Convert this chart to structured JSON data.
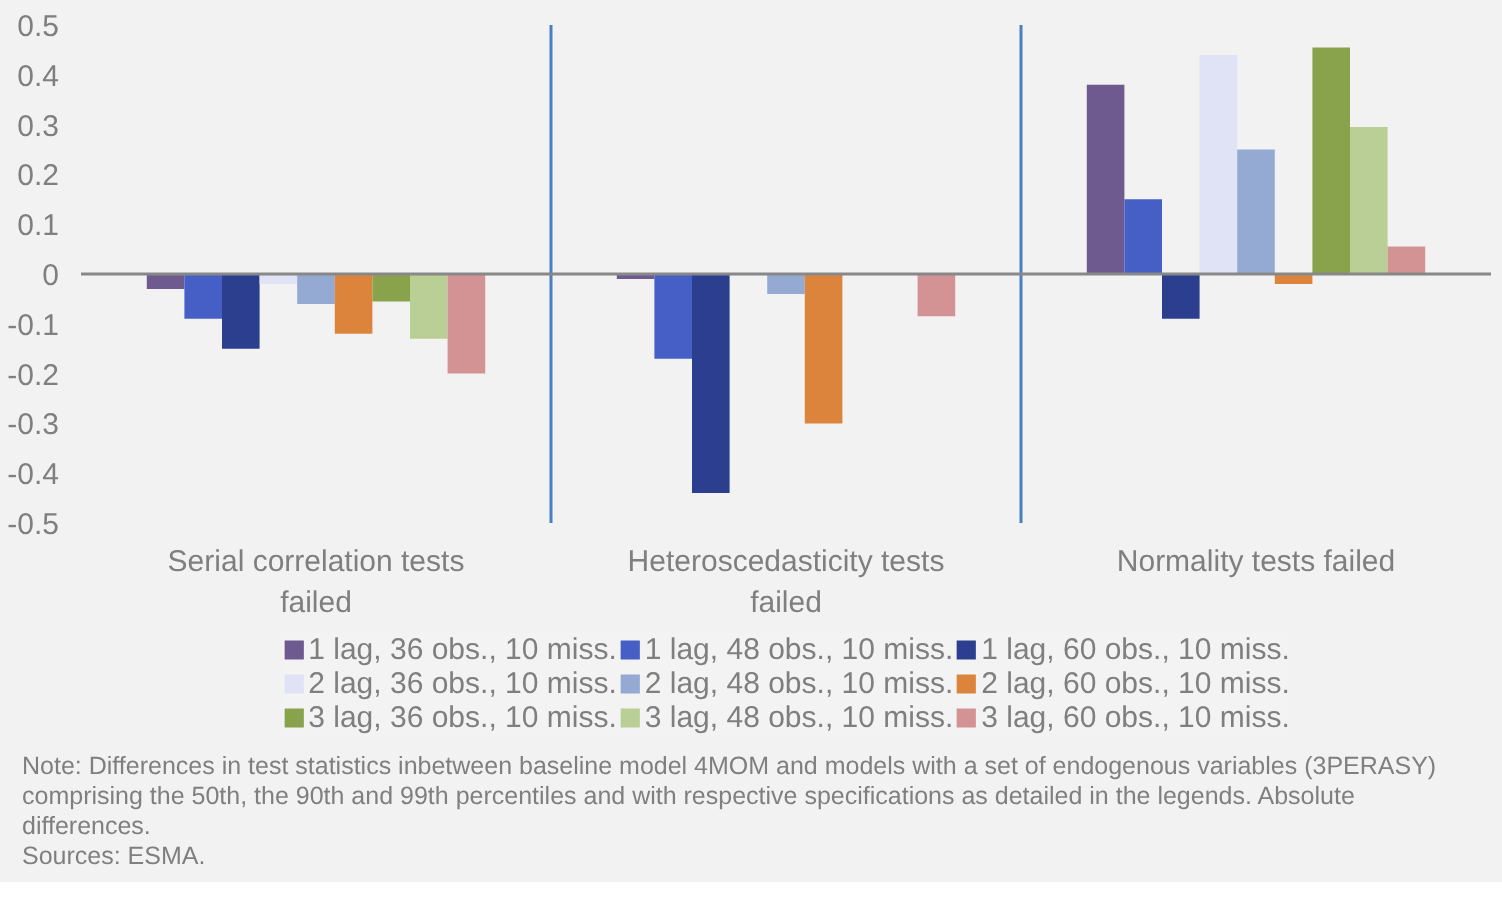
{
  "chart_data": {
    "type": "bar",
    "categories": [
      "Serial correlation tests failed",
      "Heteroscedasticity tests failed",
      "Normality tests failed"
    ],
    "series": [
      {
        "name": "1 lag, 36 obs., 10 miss.",
        "color": "#6f5a90",
        "values": [
          -0.03,
          -0.01,
          0.38
        ]
      },
      {
        "name": "1 lag, 48 obs., 10 miss.",
        "color": "#455fc6",
        "values": [
          -0.09,
          -0.17,
          0.15
        ]
      },
      {
        "name": "1 lag, 60 obs., 10 miss.",
        "color": "#2c3f8e",
        "values": [
          -0.15,
          -0.44,
          -0.09
        ]
      },
      {
        "name": "2 lag, 36 obs., 10 miss.",
        "color": "#dfe3f5",
        "values": [
          -0.02,
          0,
          0.44
        ]
      },
      {
        "name": "2 lag, 48 obs., 10 miss.",
        "color": "#94aad3",
        "values": [
          -0.06,
          -0.04,
          0.25
        ]
      },
      {
        "name": "2 lag, 60 obs., 10 miss.",
        "color": "#dd843c",
        "values": [
          -0.12,
          -0.3,
          -0.02
        ]
      },
      {
        "name": "3 lag, 36 obs., 10 miss.",
        "color": "#88a34c",
        "values": [
          -0.055,
          0,
          0.455
        ]
      },
      {
        "name": "3 lag, 48 obs., 10 miss.",
        "color": "#b9cf95",
        "values": [
          -0.13,
          0,
          0.295
        ]
      },
      {
        "name": "3 lag, 60 obs., 10 miss.",
        "color": "#d39293",
        "values": [
          -0.2,
          -0.085,
          0.055
        ]
      }
    ],
    "ylim": [
      -0.5,
      0.5
    ],
    "yticks": [
      -0.5,
      -0.4,
      -0.3,
      -0.2,
      -0.1,
      0,
      0.1,
      0.2,
      0.3,
      0.4,
      0.5
    ],
    "grid": false,
    "legend": "bottom",
    "annotations": [
      "Note: Differences in test statistics inbetween baseline model  4MOM and  models with a set of endogenous variables (3PERASY) comprising the 50th, the 90th and 99th percentiles and  with respective specifications as detailed in the legends. Absolute differences.",
      "Sources: ESMA."
    ]
  }
}
